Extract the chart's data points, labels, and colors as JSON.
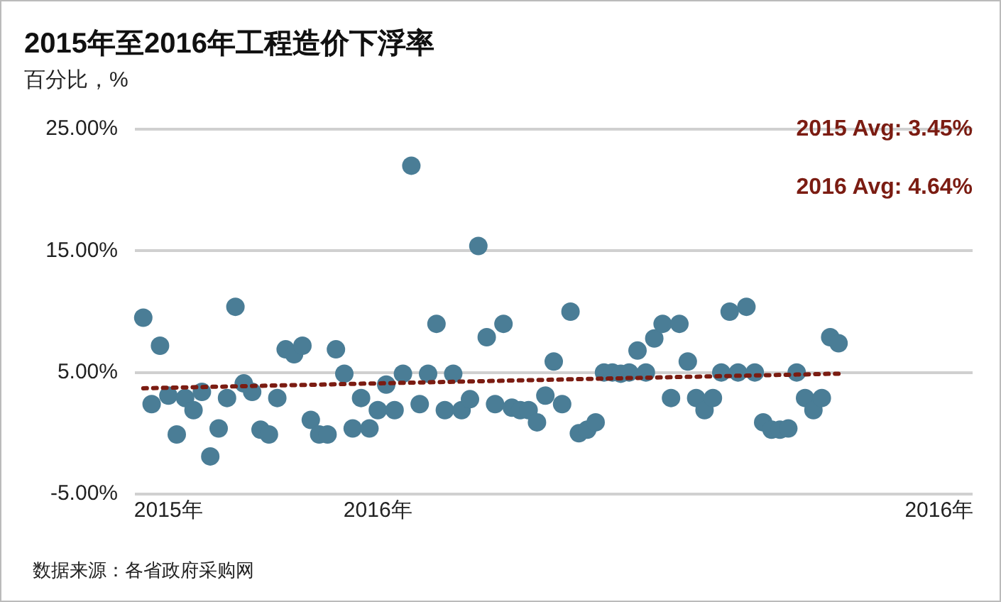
{
  "chart_data": {
    "type": "scatter",
    "title": "2015年至2016年工程造价下浮率",
    "ylabel": "百分比，%",
    "annotations": [
      "2015 Avg: 3.45%",
      "2016 Avg: 4.64%",
      "数据来源：各省政府采购网"
    ],
    "categories": [
      null,
      null,
      null,
      null,
      "2015年",
      null,
      null,
      null,
      null,
      null,
      null,
      null,
      null,
      null,
      null,
      null,
      null,
      null,
      null,
      null,
      null,
      null,
      null,
      null,
      null,
      null,
      null,
      null,
      null,
      "2016年",
      null,
      null,
      null,
      null,
      null,
      null,
      null,
      null,
      null,
      null,
      null,
      null,
      null,
      null,
      null,
      null,
      null,
      null,
      null,
      null,
      null,
      null,
      null,
      null,
      null,
      null,
      null,
      null,
      null,
      null,
      null,
      null,
      null,
      null,
      null,
      null,
      null,
      null,
      null,
      null,
      null,
      null,
      null,
      null,
      null,
      null,
      null,
      null,
      null,
      null,
      null,
      null,
      null,
      null,
      null,
      null,
      null,
      null,
      null,
      null,
      null,
      null,
      null,
      null,
      null,
      null,
      "2016年",
      null,
      null,
      null,
      null
    ],
    "series": [
      {
        "type": "scatter",
        "color": "#4a7d96",
        "values": [
          null,
          9.5,
          2.4,
          7.2,
          3.1,
          -0.1,
          2.9,
          1.9,
          3.4,
          -1.9,
          0.4,
          2.9,
          10.4,
          4.1,
          3.4,
          0.3,
          -0.1,
          2.9,
          6.9,
          6.5,
          7.2,
          1.1,
          -0.1,
          -0.1,
          6.9,
          4.9,
          0.4,
          2.9,
          0.4,
          1.9,
          4.0,
          1.9,
          4.9,
          22,
          2.4,
          4.9,
          9.0,
          1.9,
          4.9,
          1.9,
          2.8,
          15.4,
          7.9,
          2.4,
          9.0,
          2.1,
          1.9,
          1.9,
          0.9,
          3.1,
          5.9,
          2.4,
          10.0,
          0.0,
          0.3,
          0.9,
          5.0,
          5.0,
          4.9,
          5.0,
          6.8,
          5.0,
          7.8,
          9.0,
          2.9,
          9.0,
          5.9,
          2.9,
          1.9,
          2.9,
          5.0,
          10.0,
          5.0,
          10.4,
          5.0,
          0.9,
          0.3,
          0.3,
          0.4,
          5.0,
          2.9,
          1.9,
          2.9,
          7.9,
          7.4,
          null,
          null,
          null,
          null,
          null,
          null,
          null,
          null,
          null,
          null,
          null,
          null,
          null,
          null,
          null,
          null
        ]
      },
      {
        "type": "line",
        "color": "#7b1c12",
        "line_style": "dotted",
        "marker": "none",
        "values": [
          null,
          3.7,
          3.71,
          3.73,
          3.74,
          3.76,
          3.77,
          3.79,
          3.8,
          3.82,
          3.83,
          3.84,
          3.86,
          3.87,
          3.89,
          3.9,
          3.92,
          3.93,
          3.95,
          3.96,
          3.97,
          3.99,
          4.0,
          4.02,
          4.03,
          4.05,
          4.06,
          4.08,
          4.09,
          4.1,
          4.12,
          4.13,
          4.15,
          4.16,
          4.18,
          4.19,
          4.21,
          4.22,
          4.23,
          4.25,
          4.26,
          4.28,
          4.29,
          4.31,
          4.32,
          4.34,
          4.35,
          4.37,
          4.38,
          4.39,
          4.41,
          4.42,
          4.44,
          4.45,
          4.47,
          4.48,
          4.5,
          4.51,
          4.52,
          4.54,
          4.55,
          4.57,
          4.58,
          4.6,
          4.61,
          4.63,
          4.64,
          4.65,
          4.67,
          4.68,
          4.7,
          4.71,
          4.73,
          4.74,
          4.76,
          4.77,
          4.78,
          4.8,
          4.81,
          4.83,
          4.84,
          4.86,
          4.87,
          4.89,
          4.9,
          null,
          null,
          null,
          null,
          null,
          null,
          null,
          null,
          null,
          null,
          null,
          null,
          null,
          null,
          null,
          null
        ]
      }
    ],
    "ylim": [
      -5,
      25
    ],
    "yticks": [
      {
        "value": -5,
        "label": "-5.00%"
      },
      {
        "value": 5,
        "label": "5.00%"
      },
      {
        "value": 15,
        "label": "15.00%"
      },
      {
        "value": 25,
        "label": "25.00%"
      }
    ],
    "grid": "y",
    "marker": "circle"
  }
}
